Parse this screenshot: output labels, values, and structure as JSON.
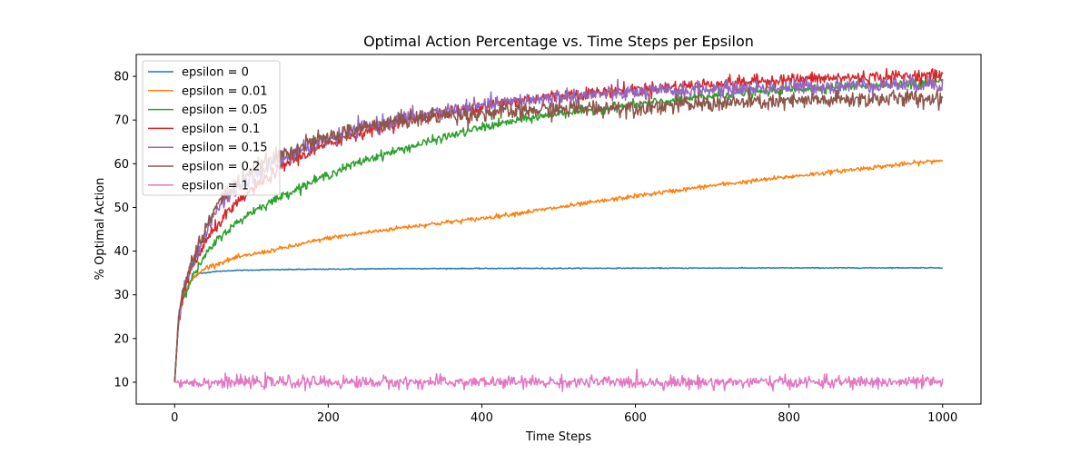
{
  "chart_data": {
    "type": "line",
    "title": "Optimal Action Percentage vs. Time Steps per Epsilon",
    "xlabel": "Time Steps",
    "ylabel": "% Optimal Action",
    "xlim": [
      -50,
      1050
    ],
    "ylim": [
      5,
      85
    ],
    "xticks": [
      0,
      200,
      400,
      600,
      800,
      1000
    ],
    "yticks": [
      10,
      20,
      30,
      40,
      50,
      60,
      70,
      80
    ],
    "legend_position": "top-left",
    "grid": false,
    "series": [
      {
        "name": "epsilon = 0",
        "color": "#1f77b4",
        "noise": 0.05,
        "points": [
          [
            0,
            10
          ],
          [
            5,
            24
          ],
          [
            10,
            29
          ],
          [
            20,
            33
          ],
          [
            30,
            34.8
          ],
          [
            50,
            35.3
          ],
          [
            80,
            35.6
          ],
          [
            150,
            35.8
          ],
          [
            300,
            36
          ],
          [
            600,
            36.1
          ],
          [
            1000,
            36.2
          ]
        ]
      },
      {
        "name": "epsilon = 0.01",
        "color": "#ff7f0e",
        "noise": 0.25,
        "points": [
          [
            0,
            10
          ],
          [
            5,
            24
          ],
          [
            10,
            29
          ],
          [
            20,
            33
          ],
          [
            40,
            36.2
          ],
          [
            80,
            38.5
          ],
          [
            150,
            41
          ],
          [
            200,
            43
          ],
          [
            300,
            45.5
          ],
          [
            400,
            47.5
          ],
          [
            500,
            50
          ],
          [
            600,
            52.6
          ],
          [
            700,
            55
          ],
          [
            800,
            57
          ],
          [
            900,
            59
          ],
          [
            1000,
            60.8
          ]
        ]
      },
      {
        "name": "epsilon = 0.05",
        "color": "#2ca02c",
        "noise": 0.5,
        "points": [
          [
            0,
            10
          ],
          [
            5,
            24
          ],
          [
            10,
            29
          ],
          [
            20,
            33
          ],
          [
            40,
            39
          ],
          [
            60,
            43.5
          ],
          [
            100,
            49
          ],
          [
            150,
            53.5
          ],
          [
            200,
            57.5
          ],
          [
            250,
            61
          ],
          [
            300,
            63.5
          ],
          [
            350,
            66
          ],
          [
            400,
            68.3
          ],
          [
            450,
            70
          ],
          [
            500,
            71.5
          ],
          [
            600,
            73.5
          ],
          [
            700,
            75.5
          ],
          [
            800,
            77
          ],
          [
            900,
            78
          ],
          [
            1000,
            78.5
          ]
        ]
      },
      {
        "name": "epsilon = 0.1",
        "color": "#d62728",
        "noise": 0.7,
        "points": [
          [
            0,
            10
          ],
          [
            5,
            24
          ],
          [
            10,
            29
          ],
          [
            20,
            35
          ],
          [
            40,
            42
          ],
          [
            60,
            47
          ],
          [
            100,
            54
          ],
          [
            150,
            60.5
          ],
          [
            200,
            64.5
          ],
          [
            250,
            67.5
          ],
          [
            300,
            70
          ],
          [
            350,
            71.5
          ],
          [
            400,
            73.3
          ],
          [
            450,
            74.5
          ],
          [
            500,
            75.7
          ],
          [
            600,
            77
          ],
          [
            700,
            78.3
          ],
          [
            800,
            79.3
          ],
          [
            900,
            79.8
          ],
          [
            1000,
            80.3
          ]
        ]
      },
      {
        "name": "epsilon = 0.15",
        "color": "#9467bd",
        "noise": 0.9,
        "points": [
          [
            0,
            10
          ],
          [
            5,
            24
          ],
          [
            10,
            30
          ],
          [
            20,
            36
          ],
          [
            40,
            44
          ],
          [
            60,
            51
          ],
          [
            100,
            57
          ],
          [
            150,
            62
          ],
          [
            200,
            65.5
          ],
          [
            250,
            68.5
          ],
          [
            300,
            70.5
          ],
          [
            350,
            72
          ],
          [
            400,
            73.2
          ],
          [
            450,
            74.3
          ],
          [
            500,
            75.3
          ],
          [
            600,
            76.3
          ],
          [
            700,
            77
          ],
          [
            800,
            77.5
          ],
          [
            900,
            78
          ],
          [
            1000,
            78.3
          ]
        ]
      },
      {
        "name": "epsilon = 0.2",
        "color": "#8c564b",
        "noise": 1.0,
        "points": [
          [
            0,
            10
          ],
          [
            5,
            24
          ],
          [
            10,
            30
          ],
          [
            20,
            36.5
          ],
          [
            40,
            45
          ],
          [
            60,
            52
          ],
          [
            100,
            58.5
          ],
          [
            150,
            63
          ],
          [
            200,
            66
          ],
          [
            250,
            68.5
          ],
          [
            300,
            70
          ],
          [
            350,
            71
          ],
          [
            400,
            71.5
          ],
          [
            450,
            72
          ],
          [
            500,
            72.5
          ],
          [
            600,
            73
          ],
          [
            700,
            73.8
          ],
          [
            800,
            74.2
          ],
          [
            900,
            74.8
          ],
          [
            1000,
            75
          ]
        ]
      },
      {
        "name": "epsilon = 1",
        "color": "#e377c2",
        "noise": 0.7,
        "points": [
          [
            0,
            10
          ],
          [
            1000,
            10
          ]
        ]
      }
    ]
  }
}
